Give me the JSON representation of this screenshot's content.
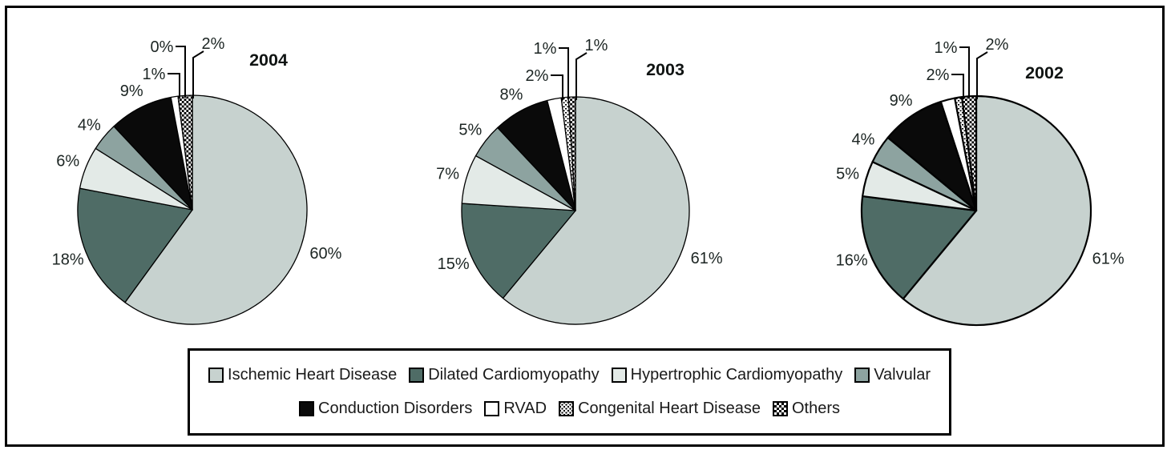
{
  "figure": {
    "background": "#FFFFFF",
    "frame_color": "#000000"
  },
  "palette": {
    "Ischemic Heart Disease": {
      "fill": "#C7D2CF"
    },
    "Dilated Cardiomyopathy": {
      "fill": "#4F6C66"
    },
    "Hypertrophic Cardiomyopathy": {
      "fill": "#E3EAE7"
    },
    "Valvular": {
      "fill": "#8DA3A0"
    },
    "Conduction Disorders": {
      "fill": "#0A0A0A"
    },
    "RVAD": {
      "fill": "#FFFFFF"
    },
    "Congenital Heart Disease": {
      "pattern": "dots"
    },
    "Others": {
      "pattern": "checker"
    }
  },
  "chart_data": [
    {
      "type": "pie",
      "title": "2004",
      "start_angle": "12-oclock",
      "direction": "clockwise",
      "legend_position": "bottom",
      "categories": [
        "Ischemic Heart Disease",
        "Dilated Cardiomyopathy",
        "Hypertrophic Cardiomyopathy",
        "Valvular",
        "Conduction Disorders",
        "RVAD",
        "Congenital Heart Disease",
        "Others"
      ],
      "values": [
        60,
        18,
        6,
        4,
        9,
        1,
        0,
        2
      ],
      "labels": [
        "60%",
        "18%",
        "6%",
        "4%",
        "9%",
        "1%",
        "0%",
        "2%"
      ]
    },
    {
      "type": "pie",
      "title": "2003",
      "start_angle": "12-oclock",
      "direction": "clockwise",
      "legend_position": "bottom",
      "categories": [
        "Ischemic Heart Disease",
        "Dilated Cardiomyopathy",
        "Hypertrophic Cardiomyopathy",
        "Valvular",
        "Conduction Disorders",
        "RVAD",
        "Congenital Heart Disease",
        "Others"
      ],
      "values": [
        61,
        15,
        7,
        5,
        8,
        2,
        1,
        1
      ],
      "labels": [
        "61%",
        "15%",
        "7%",
        "5%",
        "8%",
        "2%",
        "1%",
        "1%"
      ]
    },
    {
      "type": "pie",
      "title": "2002",
      "start_angle": "12-oclock",
      "direction": "clockwise",
      "legend_position": "bottom",
      "categories": [
        "Ischemic Heart Disease",
        "Dilated Cardiomyopathy",
        "Hypertrophic Cardiomyopathy",
        "Valvular",
        "Conduction Disorders",
        "RVAD",
        "Congenital Heart Disease",
        "Others"
      ],
      "values": [
        61,
        16,
        5,
        4,
        9,
        2,
        1,
        2
      ],
      "labels": [
        "61%",
        "16%",
        "5%",
        "4%",
        "9%",
        "2%",
        "1%",
        "2%"
      ]
    }
  ],
  "legend": {
    "rows": [
      [
        "Ischemic Heart Disease",
        "Dilated Cardiomyopathy",
        "Hypertrophic Cardiomyopathy",
        "Valvular"
      ],
      [
        "Conduction Disorders",
        "RVAD",
        "Congenital Heart Disease",
        "Others"
      ]
    ]
  }
}
